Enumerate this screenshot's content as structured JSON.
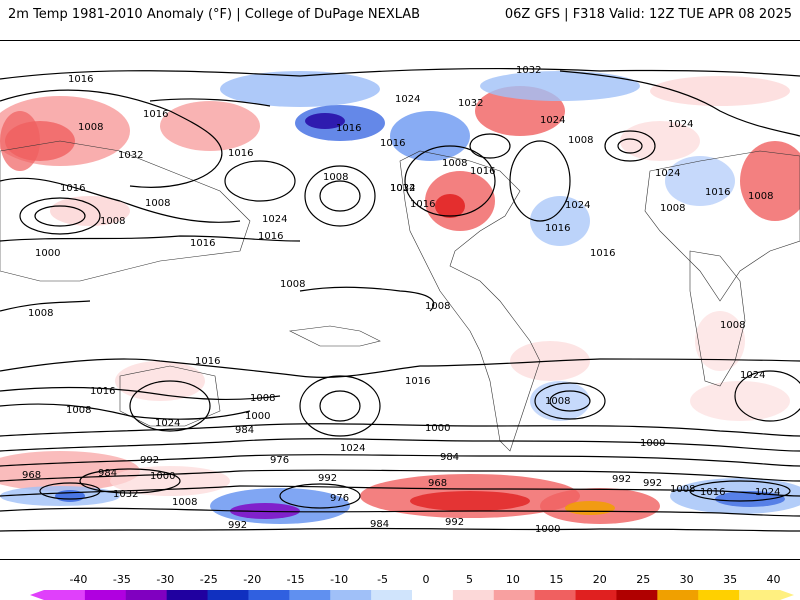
{
  "header": {
    "title": "2m Temp 1981-2010 Anomaly (°F) | College of DuPage NEXLAB",
    "run_info": "06Z GFS | F318 Valid: 12Z TUE APR 08 2025"
  },
  "map": {
    "contour_labels": [
      "1016",
      "1032",
      "1024",
      "1032",
      "1016",
      "1008",
      "1024",
      "1008",
      "1016",
      "1024",
      "1016",
      "1016",
      "1032",
      "1008",
      "1016",
      "1016",
      "1008",
      "1024",
      "1008",
      "1024",
      "1032",
      "1016",
      "1024",
      "1016",
      "1016",
      "1008",
      "1016",
      "1024",
      "1008",
      "1008",
      "1000",
      "1016",
      "1016",
      "1008",
      "1008",
      "1008",
      "1008",
      "1008",
      "1016",
      "1024",
      "1008",
      "1024",
      "1016",
      "1000",
      "1008",
      "1016",
      "1000",
      "984",
      "976",
      "992",
      "984",
      "992",
      "1024",
      "1032",
      "1000",
      "992",
      "968",
      "984",
      "976",
      "992",
      "984",
      "992",
      "1000",
      "1008",
      "1008",
      "1016",
      "1024",
      "992",
      "968",
      "1000"
    ]
  },
  "colorbar": {
    "labels": [
      "-40",
      "-35",
      "-30",
      "-25",
      "-20",
      "-15",
      "-10",
      "-5",
      "0",
      "5",
      "10",
      "15",
      "20",
      "25",
      "30",
      "35",
      "40"
    ],
    "colors": [
      "#e040fb",
      "#b000e0",
      "#8000c0",
      "#2000a0",
      "#1030c0",
      "#3060e0",
      "#6090f0",
      "#a0c0f8",
      "#d0e4fc",
      "#ffffff",
      "#fcd8d8",
      "#f8a0a0",
      "#f06060",
      "#e02020",
      "#b00000",
      "#f0a000",
      "#ffd000",
      "#fff080"
    ]
  }
}
